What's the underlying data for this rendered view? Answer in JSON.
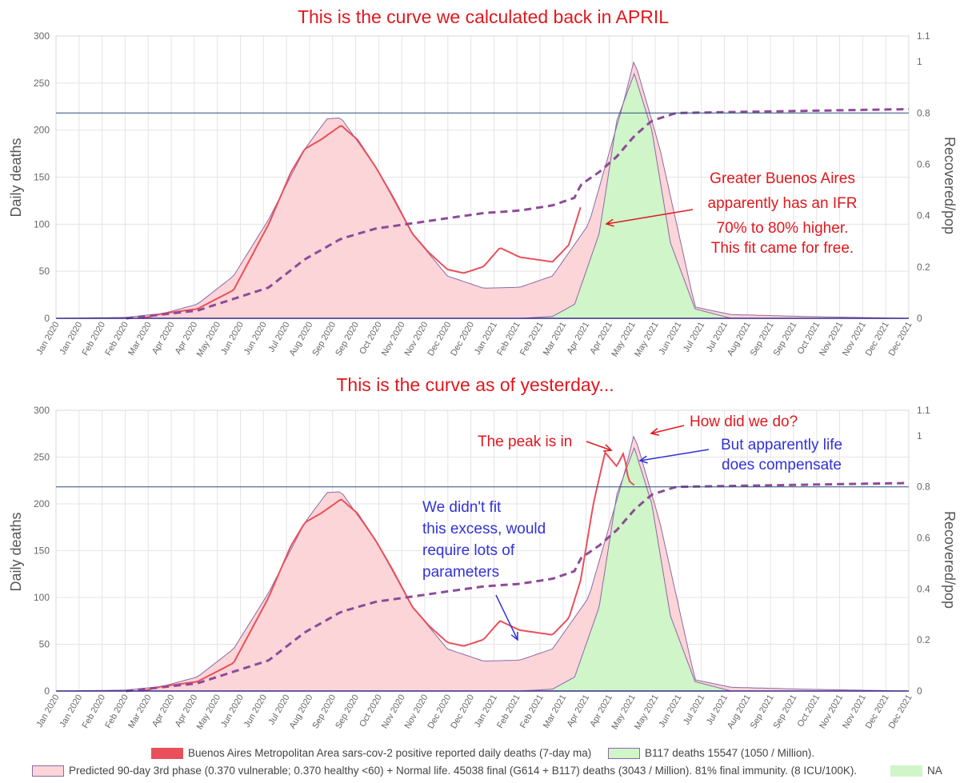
{
  "colors": {
    "observed": "#e8505b",
    "phase_fill": "#fbd5d8",
    "phase_line": "#8a6aa8",
    "b117_fill": "#cff5c8",
    "immunity_line": "#8d4b99",
    "threshold_line": "#2a4e7a",
    "annotation_red": "#e0181e",
    "annotation_blue": "#3232d6",
    "grid": "#e4e4e4",
    "axis_text": "#666666"
  },
  "x_tick_labels": [
    "Jan 2020",
    "Jan 2020",
    "Feb 2020",
    "Feb 2020",
    "Mar 2020",
    "Apr 2020",
    "Apr 2020",
    "May 2020",
    "Jun 2020",
    "Jun 2020",
    "Jul 2020",
    "Aug 2020",
    "Sep 2020",
    "Sep 2020",
    "Oct 2020",
    "Nov 2020",
    "Nov 2020",
    "Dec 2020",
    "Dec 2020",
    "Jan 2021",
    "Feb 2021",
    "Feb 2021",
    "Mar 2021",
    "Apr 2021",
    "Apr 2021",
    "May 2021",
    "May 2021",
    "Jun 2021",
    "Jul 2021",
    "Jul 2021",
    "Aug 2021",
    "Sep 2021",
    "Sep 2021",
    "Oct 2021",
    "Nov 2021",
    "Nov 2021",
    "Dec 2021",
    "Dec 2021"
  ],
  "chart_data": [
    {
      "type": "area",
      "title": "This is the curve we calculated back in APRIL",
      "ylabel": "Daily deaths",
      "ylabel_right": "Recovered/pop",
      "ylim": [
        0,
        300
      ],
      "ylim_right": [
        0,
        1.1
      ],
      "y_ticks": [
        0,
        50,
        100,
        150,
        200,
        250,
        300
      ],
      "y_right_ticks": [
        0,
        0.2,
        0.4,
        0.6,
        0.8,
        1.0,
        1.1
      ],
      "threshold_right": 0.8,
      "grid": true,
      "series": [
        {
          "name": "Predicted 90-day 3rd phase (0.370 vulnerable; 0.370 healthy <60) + Normal life. 45038 final (G614 + B117) deaths (3043 / Million). 81% final immunity. (8 ICU/100K).",
          "x": [
            "2020-01-01",
            "2020-03-01",
            "2020-04-01",
            "2020-05-01",
            "2020-06-01",
            "2020-07-01",
            "2020-08-01",
            "2020-08-20",
            "2020-09-01",
            "2020-10-01",
            "2020-11-01",
            "2020-12-01",
            "2021-01-01",
            "2021-02-01",
            "2021-03-01",
            "2021-04-01",
            "2021-05-01",
            "2021-05-10",
            "2021-06-01",
            "2021-07-01",
            "2021-08-01",
            "2021-10-01",
            "2021-12-31"
          ],
          "values": [
            0,
            1,
            5,
            15,
            45,
            105,
            180,
            212,
            213,
            160,
            90,
            45,
            32,
            33,
            45,
            100,
            230,
            275,
            180,
            12,
            4,
            2,
            0
          ]
        },
        {
          "name": "B117 deaths 15547 (1050 / Million).",
          "x": [
            "2021-02-01",
            "2021-03-01",
            "2021-03-20",
            "2021-04-10",
            "2021-04-25",
            "2021-05-10",
            "2021-05-25",
            "2021-06-10",
            "2021-07-01",
            "2021-08-01"
          ],
          "values": [
            0,
            2,
            15,
            90,
            210,
            260,
            200,
            80,
            10,
            0
          ]
        },
        {
          "name": "Buenos Aires Metropolitan Area sars-cov-2 positive reported daily deaths (7-day ma)",
          "x": [
            "2020-03-15",
            "2020-04-01",
            "2020-05-01",
            "2020-06-01",
            "2020-07-01",
            "2020-07-20",
            "2020-08-01",
            "2020-08-15",
            "2020-09-01",
            "2020-09-15",
            "2020-10-01",
            "2020-10-15",
            "2020-11-01",
            "2020-11-15",
            "2020-12-01",
            "2020-12-15",
            "2021-01-01",
            "2021-01-15",
            "2021-02-01",
            "2021-03-01",
            "2021-03-15",
            "2021-03-25"
          ],
          "values": [
            0,
            5,
            10,
            30,
            100,
            155,
            180,
            190,
            205,
            190,
            160,
            130,
            90,
            70,
            52,
            48,
            55,
            75,
            65,
            60,
            78,
            118
          ]
        },
        {
          "name": "Recovered/pop",
          "axis": "right",
          "x": [
            "2020-03-01",
            "2020-05-01",
            "2020-07-01",
            "2020-08-01",
            "2020-09-01",
            "2020-10-01",
            "2020-11-01",
            "2020-12-01",
            "2021-01-01",
            "2021-02-01",
            "2021-03-01",
            "2021-03-20",
            "2021-03-25",
            "2021-04-10",
            "2021-04-25",
            "2021-05-10",
            "2021-05-25",
            "2021-06-15",
            "2021-12-31"
          ],
          "values": [
            0,
            0.03,
            0.12,
            0.23,
            0.31,
            0.35,
            0.37,
            0.39,
            0.41,
            0.42,
            0.44,
            0.47,
            0.52,
            0.57,
            0.63,
            0.71,
            0.77,
            0.8,
            0.815
          ]
        }
      ],
      "annotations": [
        {
          "text": [
            "Greater Buenos Aires",
            "apparently has an IFR",
            "70% to 80% higher.",
            "This fit came for free."
          ],
          "color": "red"
        }
      ]
    },
    {
      "type": "area",
      "title": "This is the curve as of yesterday...",
      "ylabel": "Daily deaths",
      "ylabel_right": "Recovered/pop",
      "ylim": [
        0,
        300
      ],
      "ylim_right": [
        0,
        1.1
      ],
      "y_ticks": [
        0,
        50,
        100,
        150,
        200,
        250,
        300
      ],
      "y_right_ticks": [
        0,
        0.2,
        0.4,
        0.6,
        0.8,
        1.0,
        1.1
      ],
      "threshold_right": 0.8,
      "grid": true,
      "series": [
        {
          "name": "Predicted 90-day 3rd phase (0.370 vulnerable; 0.370 healthy <60) + Normal life. 45038 final (G614 + B117) deaths (3043 / Million). 81% final immunity. (8 ICU/100K).",
          "x": [
            "2020-01-01",
            "2020-03-01",
            "2020-04-01",
            "2020-05-01",
            "2020-06-01",
            "2020-07-01",
            "2020-08-01",
            "2020-08-20",
            "2020-09-01",
            "2020-10-01",
            "2020-11-01",
            "2020-12-01",
            "2021-01-01",
            "2021-02-01",
            "2021-03-01",
            "2021-04-01",
            "2021-05-01",
            "2021-05-10",
            "2021-06-01",
            "2021-07-01",
            "2021-08-01",
            "2021-10-01",
            "2021-12-31"
          ],
          "values": [
            0,
            1,
            5,
            15,
            45,
            105,
            180,
            212,
            213,
            160,
            90,
            45,
            32,
            33,
            45,
            100,
            230,
            275,
            180,
            12,
            4,
            2,
            0
          ]
        },
        {
          "name": "B117 deaths 15547 (1050 / Million).",
          "x": [
            "2021-02-01",
            "2021-03-01",
            "2021-03-20",
            "2021-04-10",
            "2021-04-25",
            "2021-05-10",
            "2021-05-25",
            "2021-06-10",
            "2021-07-01",
            "2021-08-01"
          ],
          "values": [
            0,
            2,
            15,
            90,
            210,
            260,
            200,
            80,
            10,
            0
          ]
        },
        {
          "name": "Buenos Aires Metropolitan Area sars-cov-2 positive reported daily deaths (7-day ma)",
          "x": [
            "2020-03-15",
            "2020-04-01",
            "2020-05-01",
            "2020-06-01",
            "2020-07-01",
            "2020-07-20",
            "2020-08-01",
            "2020-08-15",
            "2020-09-01",
            "2020-09-15",
            "2020-10-01",
            "2020-10-15",
            "2020-11-01",
            "2020-11-15",
            "2020-12-01",
            "2020-12-15",
            "2021-01-01",
            "2021-01-15",
            "2021-02-01",
            "2021-03-01",
            "2021-03-15",
            "2021-03-25",
            "2021-04-05",
            "2021-04-15",
            "2021-04-25",
            "2021-05-01",
            "2021-05-05",
            "2021-05-10"
          ],
          "values": [
            0,
            5,
            10,
            30,
            100,
            155,
            180,
            190,
            205,
            190,
            160,
            130,
            90,
            70,
            52,
            48,
            55,
            75,
            65,
            60,
            78,
            118,
            200,
            255,
            240,
            255,
            225,
            220
          ]
        },
        {
          "name": "Recovered/pop",
          "axis": "right",
          "x": [
            "2020-03-01",
            "2020-05-01",
            "2020-07-01",
            "2020-08-01",
            "2020-09-01",
            "2020-10-01",
            "2020-11-01",
            "2020-12-01",
            "2021-01-01",
            "2021-02-01",
            "2021-03-01",
            "2021-03-20",
            "2021-03-25",
            "2021-04-10",
            "2021-04-25",
            "2021-05-10",
            "2021-05-25",
            "2021-06-15",
            "2021-12-31"
          ],
          "values": [
            0,
            0.03,
            0.12,
            0.23,
            0.31,
            0.35,
            0.37,
            0.39,
            0.41,
            0.42,
            0.44,
            0.47,
            0.52,
            0.57,
            0.63,
            0.71,
            0.77,
            0.8,
            0.815
          ]
        }
      ],
      "annotations": [
        {
          "text": [
            "How did we do?"
          ],
          "color": "red"
        },
        {
          "text": [
            "The peak is in"
          ],
          "color": "red"
        },
        {
          "text": [
            "But apparently life",
            "does compensate"
          ],
          "color": "blue"
        },
        {
          "text": [
            "We didn't fit",
            "this excess, would",
            "require lots of",
            "parameters"
          ],
          "color": "blue"
        }
      ]
    }
  ],
  "legend": {
    "observed_label": "Buenos Aires Metropolitan Area sars-cov-2 positive reported daily deaths (7-day ma)",
    "b117_label": "B117 deaths 15547 (1050 / Million).",
    "predicted_label": "Predicted 90-day 3rd phase (0.370 vulnerable; 0.370 healthy <60) + Normal life. 45038 final (G614 + B117) deaths (3043 / Million). 81% final immunity. (8 ICU/100K).",
    "na_label": "NA"
  }
}
